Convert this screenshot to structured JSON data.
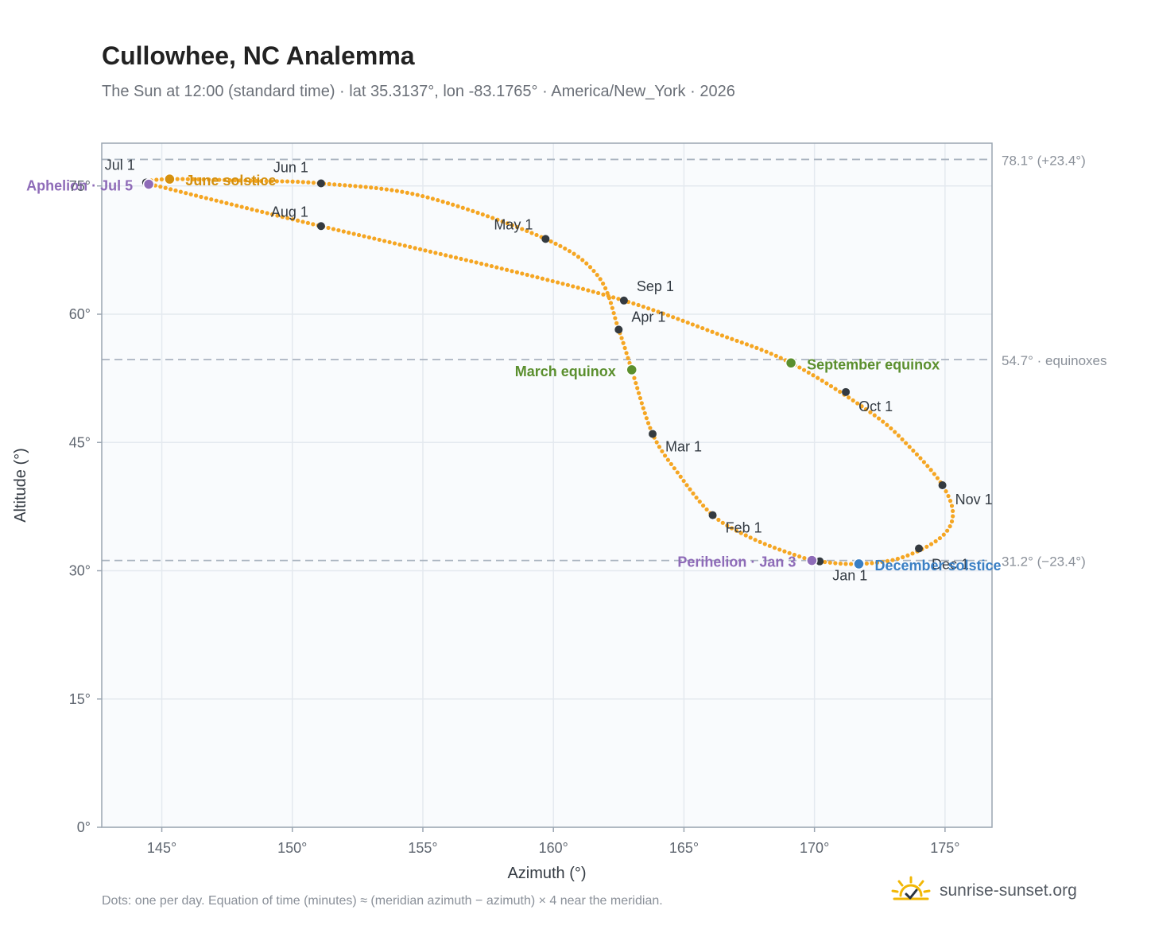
{
  "header": {
    "title": "Cullowhee, NC Analemma",
    "subtitle": "The Sun at 12:00 (standard time) · lat 35.3137°, lon -83.1765° · America/New_York · 2026"
  },
  "footer": {
    "note": "Dots: one per day. Equation of time (minutes) ≈ (meridian azimuth − azimuth) × 4 near the meridian.",
    "brand": "sunrise-sunset.org",
    "brand_icon": "sun-horizon-icon"
  },
  "colors": {
    "path": "#f5a623",
    "month_dot": "#343a40",
    "june_solstice": "#d4900f",
    "december_solstice": "#3a7fc4",
    "equinox": "#5b8f2e",
    "apsis": "#8e6bb8",
    "reference": "#aab4c0",
    "plot_bg": "#f9fbfd",
    "grid": "#e4e9ef"
  },
  "chart_data": {
    "type": "scatter",
    "xlabel": "Azimuth (°)",
    "ylabel": "Altitude (°)",
    "xlim": [
      142.7,
      176.8
    ],
    "ylim": [
      0,
      80
    ],
    "x_ticks": [
      {
        "value": 145,
        "label": "145°"
      },
      {
        "value": 150,
        "label": "150°"
      },
      {
        "value": 155,
        "label": "155°"
      },
      {
        "value": 160,
        "label": "160°"
      },
      {
        "value": 165,
        "label": "165°"
      },
      {
        "value": 170,
        "label": "170°"
      },
      {
        "value": 175,
        "label": "175°"
      }
    ],
    "y_ticks": [
      {
        "value": 0,
        "label": "0°"
      },
      {
        "value": 15,
        "label": "15°"
      },
      {
        "value": 30,
        "label": "30°"
      },
      {
        "value": 45,
        "label": "45°"
      },
      {
        "value": 60,
        "label": "60°"
      },
      {
        "value": 75,
        "label": "75°"
      }
    ],
    "grid": true,
    "reference_lines": [
      {
        "y": 78.1,
        "label": "78.1° (+23.4°)"
      },
      {
        "y": 54.7,
        "label": "54.7° · equinoxes"
      },
      {
        "y": 31.2,
        "label": "31.2° (−23.4°)"
      }
    ],
    "path_knots": [
      [
        170.2,
        31.1
      ],
      [
        171.7,
        30.8
      ],
      [
        173.3,
        31.5
      ],
      [
        174.8,
        33.8
      ],
      [
        175.3,
        36.5
      ],
      [
        174.9,
        40.0
      ],
      [
        173.7,
        44.3
      ],
      [
        172.2,
        48.4
      ],
      [
        169.1,
        54.3
      ],
      [
        166.2,
        57.8
      ],
      [
        162.7,
        61.6
      ],
      [
        158.2,
        65.2
      ],
      [
        151.1,
        70.3
      ],
      [
        147.2,
        73.2
      ],
      [
        145.1,
        74.8
      ],
      [
        144.4,
        75.4
      ],
      [
        145.3,
        75.8
      ],
      [
        148.5,
        75.6
      ],
      [
        151.1,
        75.3
      ],
      [
        155.0,
        73.8
      ],
      [
        159.7,
        68.8
      ],
      [
        161.7,
        64.5
      ],
      [
        162.5,
        58.2
      ],
      [
        163.0,
        53.5
      ],
      [
        163.8,
        46.0
      ],
      [
        164.8,
        41.3
      ],
      [
        166.1,
        36.5
      ],
      [
        167.6,
        33.8
      ],
      [
        169.2,
        31.9
      ],
      [
        170.2,
        31.1
      ]
    ],
    "month_points": [
      {
        "label": "Jan 1",
        "az": 170.2,
        "alt": 31.1
      },
      {
        "label": "Feb 1",
        "az": 166.1,
        "alt": 36.5
      },
      {
        "label": "Mar 1",
        "az": 163.8,
        "alt": 46.0
      },
      {
        "label": "Apr 1",
        "az": 162.5,
        "alt": 58.2
      },
      {
        "label": "May 1",
        "az": 159.7,
        "alt": 68.8
      },
      {
        "label": "Jun 1",
        "az": 151.1,
        "alt": 75.3
      },
      {
        "label": "Jul 1",
        "az": 144.4,
        "alt": 75.4
      },
      {
        "label": "Aug 1",
        "az": 151.1,
        "alt": 70.3
      },
      {
        "label": "Sep 1",
        "az": 162.7,
        "alt": 61.6
      },
      {
        "label": "Oct 1",
        "az": 171.2,
        "alt": 50.9
      },
      {
        "label": "Nov 1",
        "az": 174.9,
        "alt": 40.0
      },
      {
        "label": "Dec 1",
        "az": 174.0,
        "alt": 32.6
      }
    ],
    "events": [
      {
        "label": "June solstice",
        "az": 145.3,
        "alt": 75.8,
        "kind": "june_solstice"
      },
      {
        "label": "December solstice",
        "az": 171.7,
        "alt": 30.8,
        "kind": "december_solstice"
      },
      {
        "label": "March equinox",
        "az": 163.0,
        "alt": 53.5,
        "kind": "equinox"
      },
      {
        "label": "September equinox",
        "az": 169.1,
        "alt": 54.3,
        "kind": "equinox"
      },
      {
        "label": "Aphelion · Jul 5",
        "az": 144.5,
        "alt": 75.2,
        "kind": "apsis"
      },
      {
        "label": "Perihelion · Jan 3",
        "az": 169.9,
        "alt": 31.2,
        "kind": "apsis"
      }
    ]
  }
}
